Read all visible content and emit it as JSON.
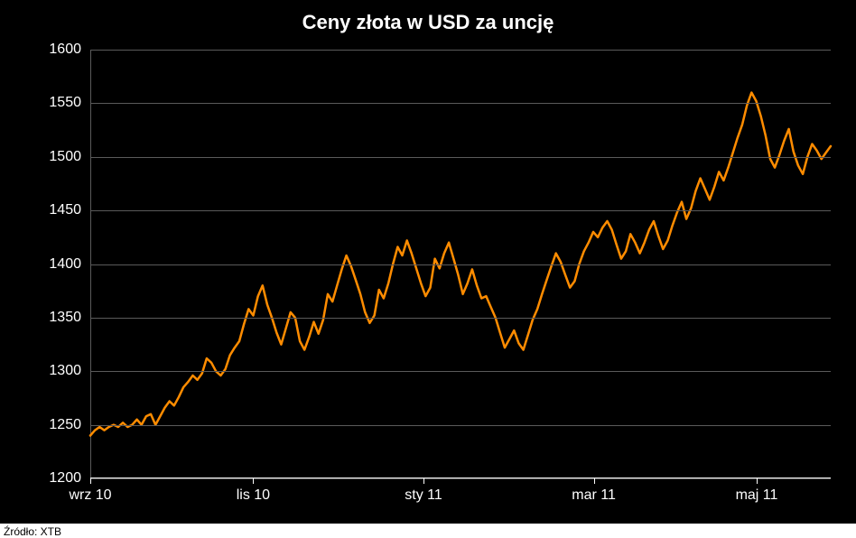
{
  "chart": {
    "type": "line",
    "title": "Ceny złota w USD za uncję",
    "title_fontsize": 22,
    "title_color": "#ffffff",
    "background_color": "#000000",
    "grid_color": "#5a5a5a",
    "axis_label_color": "#ffffff",
    "axis_label_fontsize": 16,
    "line_color": "#ff8c00",
    "line_width": 2.5,
    "ylim": [
      1200,
      1600
    ],
    "ytick_step": 50,
    "yticks": [
      1200,
      1250,
      1300,
      1350,
      1400,
      1450,
      1500,
      1550,
      1600
    ],
    "xticks": [
      {
        "pos": 0.0,
        "label": "wrz 10"
      },
      {
        "pos": 0.22,
        "label": "lis 10"
      },
      {
        "pos": 0.45,
        "label": "sty 11"
      },
      {
        "pos": 0.68,
        "label": "mar 11"
      },
      {
        "pos": 0.9,
        "label": "maj 11"
      }
    ],
    "series": {
      "values": [
        1240,
        1245,
        1248,
        1245,
        1248,
        1250,
        1248,
        1252,
        1248,
        1250,
        1255,
        1250,
        1258,
        1260,
        1250,
        1258,
        1266,
        1272,
        1268,
        1276,
        1285,
        1290,
        1296,
        1292,
        1298,
        1312,
        1308,
        1300,
        1296,
        1302,
        1315,
        1322,
        1328,
        1344,
        1358,
        1352,
        1370,
        1380,
        1362,
        1350,
        1336,
        1325,
        1340,
        1355,
        1350,
        1328,
        1320,
        1332,
        1346,
        1335,
        1348,
        1372,
        1365,
        1380,
        1395,
        1408,
        1398,
        1385,
        1372,
        1355,
        1345,
        1352,
        1376,
        1368,
        1382,
        1400,
        1416,
        1408,
        1422,
        1410,
        1396,
        1382,
        1370,
        1378,
        1405,
        1396,
        1410,
        1420,
        1405,
        1390,
        1372,
        1382,
        1395,
        1380,
        1368,
        1370,
        1360,
        1350,
        1336,
        1322,
        1330,
        1338,
        1326,
        1320,
        1334,
        1348,
        1358,
        1372,
        1385,
        1398,
        1410,
        1402,
        1390,
        1378,
        1384,
        1400,
        1412,
        1420,
        1430,
        1425,
        1434,
        1440,
        1432,
        1418,
        1405,
        1412,
        1428,
        1420,
        1410,
        1420,
        1432,
        1440,
        1426,
        1414,
        1422,
        1436,
        1448,
        1458,
        1442,
        1452,
        1468,
        1480,
        1470,
        1460,
        1472,
        1486,
        1478,
        1490,
        1504,
        1518,
        1530,
        1548,
        1560,
        1552,
        1538,
        1520,
        1498,
        1490,
        1502,
        1515,
        1526,
        1505,
        1492,
        1484,
        1500,
        1512,
        1506,
        1498,
        1504,
        1510
      ]
    }
  },
  "source": "Źródło: XTB"
}
